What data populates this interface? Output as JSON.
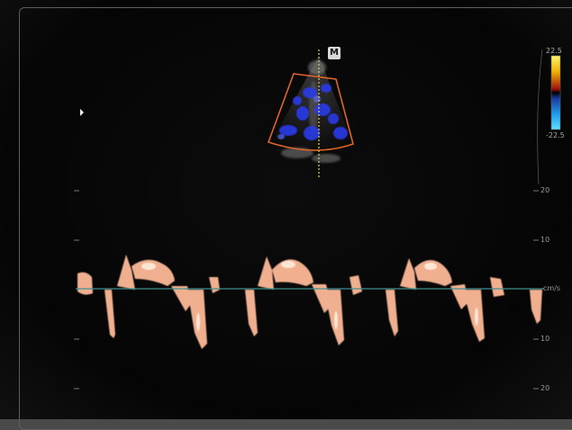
{
  "overlay": {
    "mode_badge": "M",
    "color_scale": {
      "max_label": "22.5",
      "min_label": "-22.5"
    }
  },
  "axis": {
    "unit": "cm/s",
    "ticks": [
      {
        "value": 20,
        "label": "20"
      },
      {
        "value": 10,
        "label": "10"
      },
      {
        "value": -10,
        "label": "10"
      },
      {
        "value": -20,
        "label": "20"
      }
    ]
  },
  "colors": {
    "sector_outline": "#e0642a",
    "color_flow_blue": "#2a3ae8",
    "spectral": "#f0b090",
    "baseline": "#3f8f8f",
    "cursor_line": "#e8d040"
  }
}
